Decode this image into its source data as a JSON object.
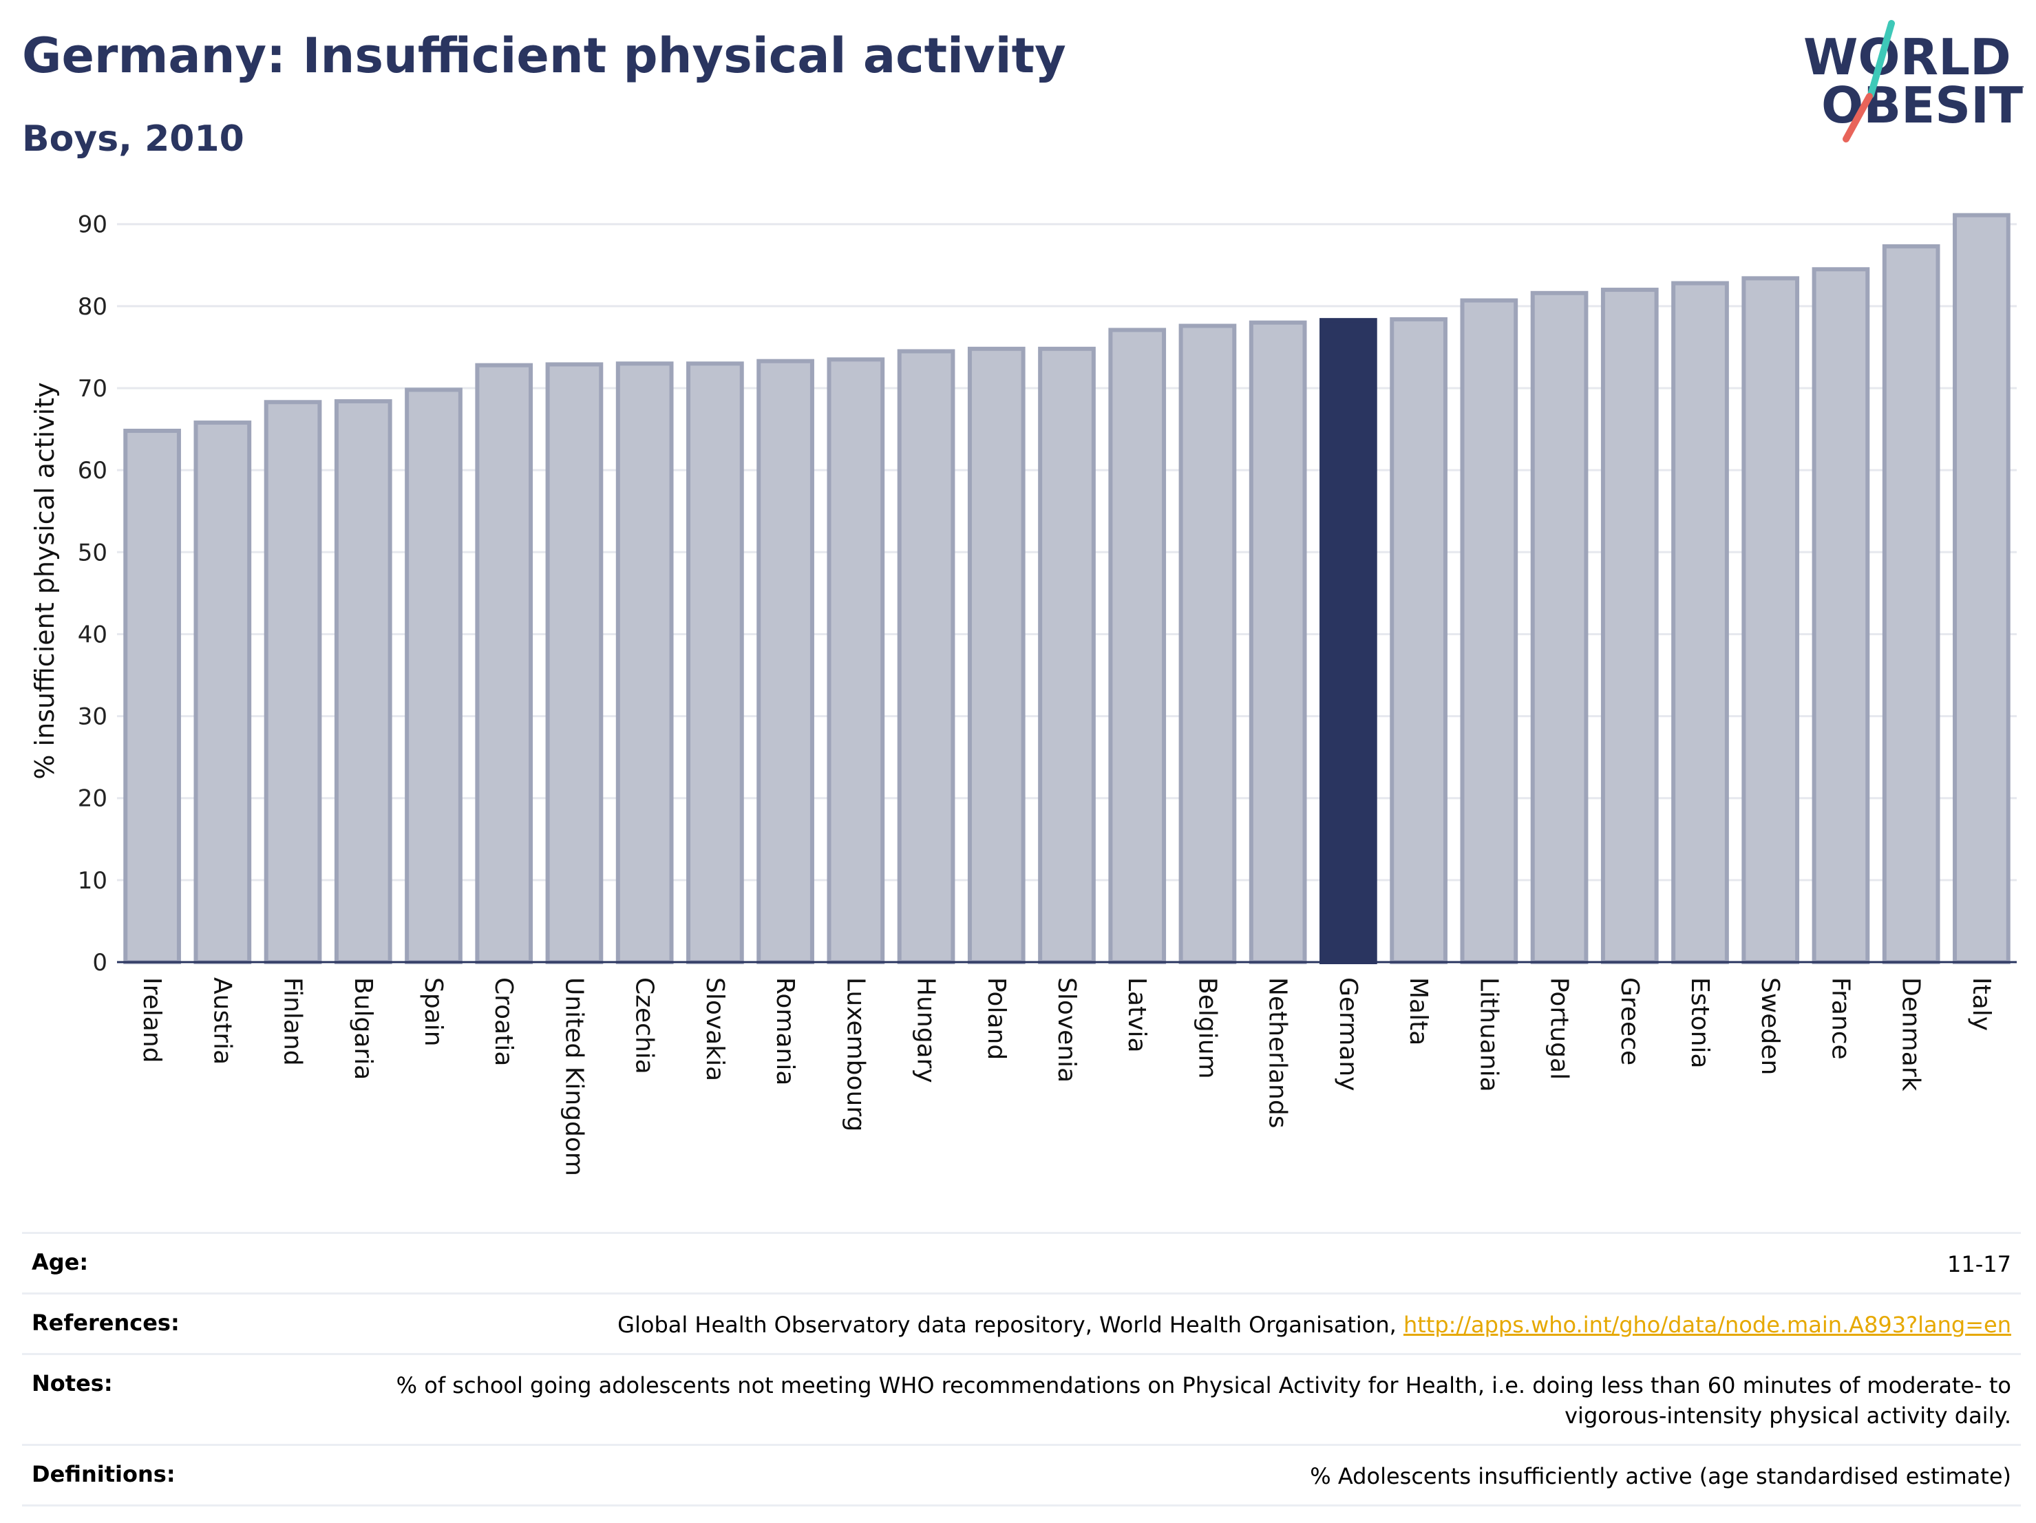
{
  "header": {
    "title": "Germany: Insufficient physical activity",
    "subtitle": "Boys, 2010"
  },
  "logo": {
    "line1": "WORLD",
    "line2": "OBESITY",
    "colors": {
      "text": "#2a3560",
      "slash_top": "#3ec8b8",
      "slash_bottom": "#e8645a"
    }
  },
  "colors": {
    "bar": "#bec2cf",
    "bar_stroke": "#9ea4b9",
    "highlight": "#2a3560",
    "grid": "#e6e8ee",
    "axis": "#2a3560"
  },
  "chart_data": {
    "type": "bar",
    "title": "Germany: Insufficient physical activity",
    "subtitle": "Boys, 2010",
    "xlabel": "",
    "ylabel": "% insufficient physical activity",
    "ylim": [
      0,
      93
    ],
    "yticks": [
      0,
      10,
      20,
      30,
      40,
      50,
      60,
      70,
      80,
      90
    ],
    "grid": true,
    "highlight": "Germany",
    "categories": [
      "Ireland",
      "Austria",
      "Finland",
      "Bulgaria",
      "Spain",
      "Croatia",
      "United Kingdom",
      "Czechia",
      "Slovakia",
      "Romania",
      "Luxembourg",
      "Hungary",
      "Poland",
      "Slovenia",
      "Latvia",
      "Belgium",
      "Netherlands",
      "Germany",
      "Malta",
      "Lithuania",
      "Portugal",
      "Greece",
      "Estonia",
      "Sweden",
      "France",
      "Denmark",
      "Italy"
    ],
    "values": [
      64.8,
      65.8,
      68.3,
      68.4,
      69.8,
      72.8,
      72.9,
      73.0,
      73.0,
      73.3,
      73.5,
      74.5,
      74.8,
      74.8,
      77.1,
      77.6,
      78.0,
      78.3,
      78.4,
      80.7,
      81.6,
      82.0,
      82.8,
      83.4,
      84.5,
      87.3,
      91.1
    ]
  },
  "meta": {
    "age": {
      "label": "Age:",
      "value": "11-17"
    },
    "references": {
      "label": "References:",
      "text": "Global Health Observatory data repository, World Health Organisation, ",
      "link": "http://apps.who.int/gho/data/node.main.A893?lang=en"
    },
    "notes": {
      "label": "Notes:",
      "value": "% of school going adolescents not meeting WHO recommendations on Physical Activity for Health, i.e. doing less than 60 minutes of moderate- to vigorous-intensity physical activity daily."
    },
    "definitions": {
      "label": "Definitions:",
      "value": "% Adolescents insufficiently active (age standardised estimate)"
    }
  }
}
